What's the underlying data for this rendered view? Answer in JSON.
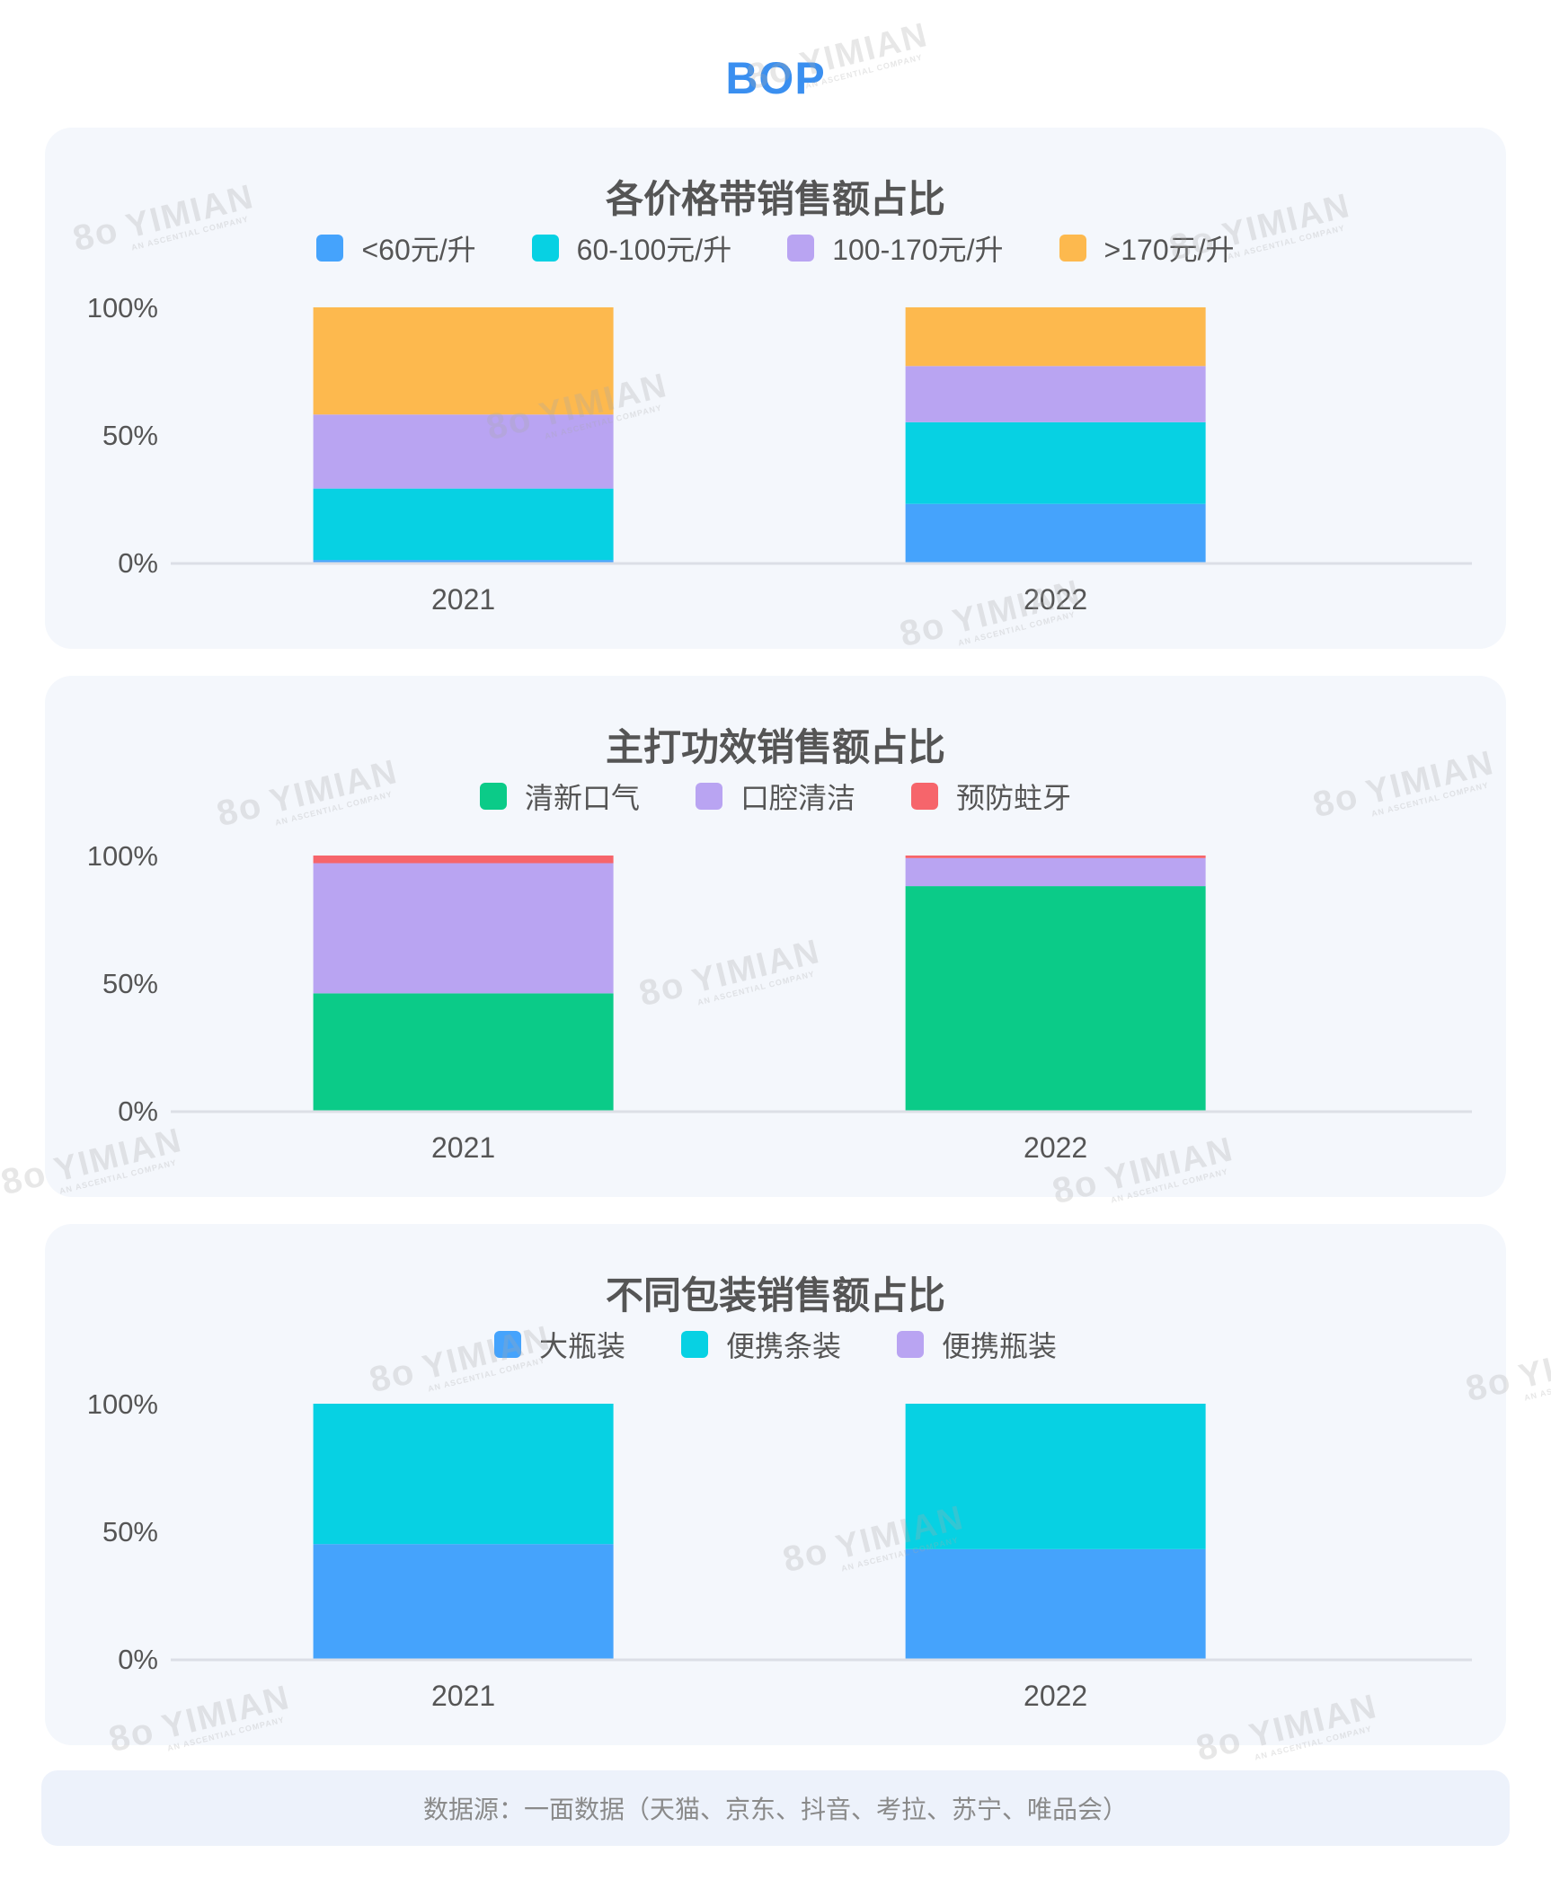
{
  "page": {
    "title": "BOP"
  },
  "watermark": {
    "text": "YIMIAN",
    "subtext": "AN ASCENTIAL COMPANY",
    "logo": "8o"
  },
  "charts": [
    {
      "title": "各价格带销售额占比",
      "chart_data": {
        "type": "bar",
        "stacked": true,
        "categories": [
          "2021",
          "2022"
        ],
        "yticks": [
          "0%",
          "50%",
          "100%"
        ],
        "ylim": [
          0,
          100
        ],
        "legend_position": "top-center",
        "series": [
          {
            "name": "<60元/升",
            "color": "#45a3fc",
            "values": [
              1,
              23
            ]
          },
          {
            "name": "60-100元/升",
            "color": "#07d1e3",
            "values": [
              28,
              32
            ]
          },
          {
            "name": "100-170元/升",
            "color": "#b9a4f2",
            "values": [
              29,
              22
            ]
          },
          {
            "name": ">170元/升",
            "color": "#fdb94e",
            "values": [
              42,
              23
            ]
          }
        ]
      }
    },
    {
      "title": "主打功效销售额占比",
      "chart_data": {
        "type": "bar",
        "stacked": true,
        "categories": [
          "2021",
          "2022"
        ],
        "yticks": [
          "0%",
          "50%",
          "100%"
        ],
        "ylim": [
          0,
          100
        ],
        "legend_position": "top-center",
        "series": [
          {
            "name": "清新口气",
            "color": "#0bcb88",
            "values": [
              46,
              88
            ]
          },
          {
            "name": "口腔清洁",
            "color": "#b9a4f2",
            "values": [
              51,
              11
            ]
          },
          {
            "name": "预防蛀牙",
            "color": "#f6656b",
            "values": [
              3,
              1
            ]
          }
        ]
      }
    },
    {
      "title": "不同包装销售额占比",
      "chart_data": {
        "type": "bar",
        "stacked": true,
        "categories": [
          "2021",
          "2022"
        ],
        "yticks": [
          "0%",
          "50%",
          "100%"
        ],
        "ylim": [
          0,
          100
        ],
        "legend_position": "top-center",
        "series": [
          {
            "name": "大瓶装",
            "color": "#45a3fc",
            "values": [
              45,
              43
            ]
          },
          {
            "name": "便携条装",
            "color": "#07d1e3",
            "values": [
              55,
              57
            ]
          },
          {
            "name": "便携瓶装",
            "color": "#b9a4f2",
            "values": [
              0,
              0
            ]
          }
        ]
      }
    }
  ],
  "footer": {
    "text": "数据源：一面数据（天猫、京东、抖音、考拉、苏宁、唯品会）"
  }
}
